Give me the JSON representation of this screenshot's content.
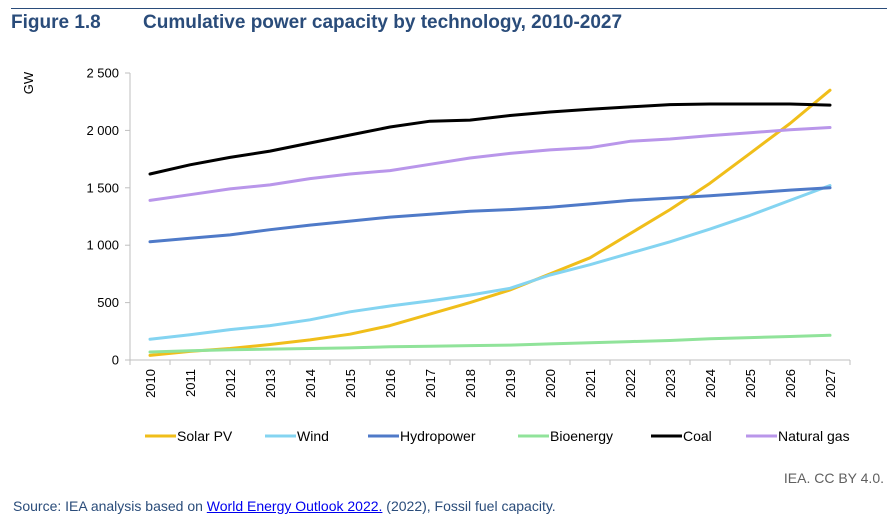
{
  "figure": {
    "number": "Figure 1.8",
    "title": "Cumulative power capacity by technology, 2010-2027"
  },
  "credit": "IEA. CC BY 4.0.",
  "source": {
    "prefix": "Source: IEA analysis based on ",
    "link": "World Energy Outlook 2022.",
    "suffix": " (2022), Fossil fuel capacity."
  },
  "chart_data": {
    "type": "line",
    "title": "Cumulative power capacity by technology, 2010-2027",
    "xlabel": "",
    "ylabel": "GW",
    "ylim": [
      0,
      2500
    ],
    "yticks": [
      0,
      500,
      1000,
      1500,
      2000,
      2500
    ],
    "ytick_labels": [
      "0",
      "500",
      "1 000",
      "1 500",
      "2 000",
      "2 500"
    ],
    "grid": "none",
    "legend_position": "bottom",
    "x": [
      "2010",
      "2011",
      "2012",
      "2013",
      "2014",
      "2015",
      "2016",
      "2017",
      "2018",
      "2019",
      "2020",
      "2021",
      "2022",
      "2023",
      "2024",
      "2025",
      "2026",
      "2027"
    ],
    "series": [
      {
        "name": "Solar PV",
        "color": "#f0be1a",
        "values": [
          40,
          75,
          100,
          135,
          175,
          225,
          300,
          400,
          500,
          610,
          750,
          890,
          1100,
          1310,
          1540,
          1800,
          2060,
          2350
        ]
      },
      {
        "name": "Wind",
        "color": "#84d4f1",
        "values": [
          180,
          220,
          265,
          300,
          350,
          420,
          470,
          515,
          565,
          625,
          740,
          830,
          930,
          1030,
          1140,
          1260,
          1390,
          1520
        ]
      },
      {
        "name": "Hydropower",
        "color": "#4f7ac8",
        "values": [
          1030,
          1060,
          1090,
          1135,
          1175,
          1210,
          1245,
          1270,
          1295,
          1310,
          1330,
          1360,
          1390,
          1410,
          1430,
          1455,
          1480,
          1500
        ]
      },
      {
        "name": "Bioenergy",
        "color": "#90e39a",
        "values": [
          70,
          80,
          90,
          95,
          100,
          105,
          115,
          120,
          125,
          130,
          140,
          150,
          160,
          170,
          185,
          195,
          205,
          215
        ]
      },
      {
        "name": "Coal",
        "color": "#000000",
        "values": [
          1620,
          1700,
          1765,
          1820,
          1890,
          1960,
          2030,
          2080,
          2090,
          2130,
          2160,
          2185,
          2205,
          2225,
          2230,
          2230,
          2230,
          2220
        ]
      },
      {
        "name": "Natural gas",
        "color": "#b996ea",
        "values": [
          1390,
          1440,
          1490,
          1525,
          1580,
          1620,
          1650,
          1705,
          1760,
          1800,
          1830,
          1850,
          1905,
          1925,
          1955,
          1980,
          2005,
          2025
        ]
      }
    ]
  }
}
